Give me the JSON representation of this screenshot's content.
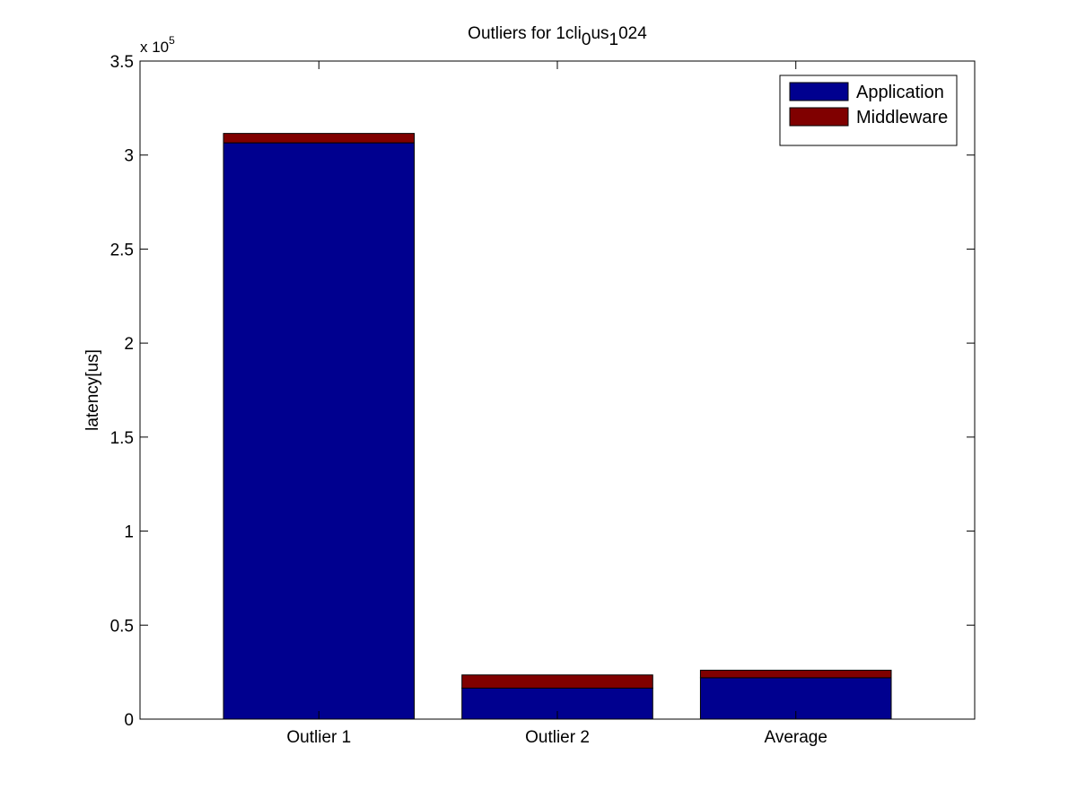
{
  "chart_data": {
    "type": "bar",
    "stacked": true,
    "title": "Outliers for 1cli_0us_1024",
    "title_parts": [
      {
        "text": "Outliers for 1cli",
        "shift": "none"
      },
      {
        "text": "0",
        "shift": "sub"
      },
      {
        "text": "us",
        "shift": "none"
      },
      {
        "text": "1",
        "shift": "sub"
      },
      {
        "text": "024",
        "shift": "none"
      }
    ],
    "xlabel": "",
    "ylabel": "latency[us]",
    "y_exponent": {
      "base": "x 10",
      "power": "5"
    },
    "ylim": [
      0,
      350000
    ],
    "yticks": [
      0,
      50000,
      100000,
      150000,
      200000,
      250000,
      300000,
      350000
    ],
    "ytick_labels": [
      "0",
      "0.5",
      "1",
      "1.5",
      "2",
      "2.5",
      "3",
      "3.5"
    ],
    "categories": [
      "Outlier 1",
      "Outlier 2",
      "Average"
    ],
    "series": [
      {
        "name": "Application",
        "color": "#00008f",
        "values": [
          306500,
          16500,
          22000
        ]
      },
      {
        "name": "Middleware",
        "color": "#800000",
        "values": [
          5000,
          7000,
          4000
        ]
      }
    ],
    "legend": {
      "position": "top-right"
    },
    "grid": false
  }
}
